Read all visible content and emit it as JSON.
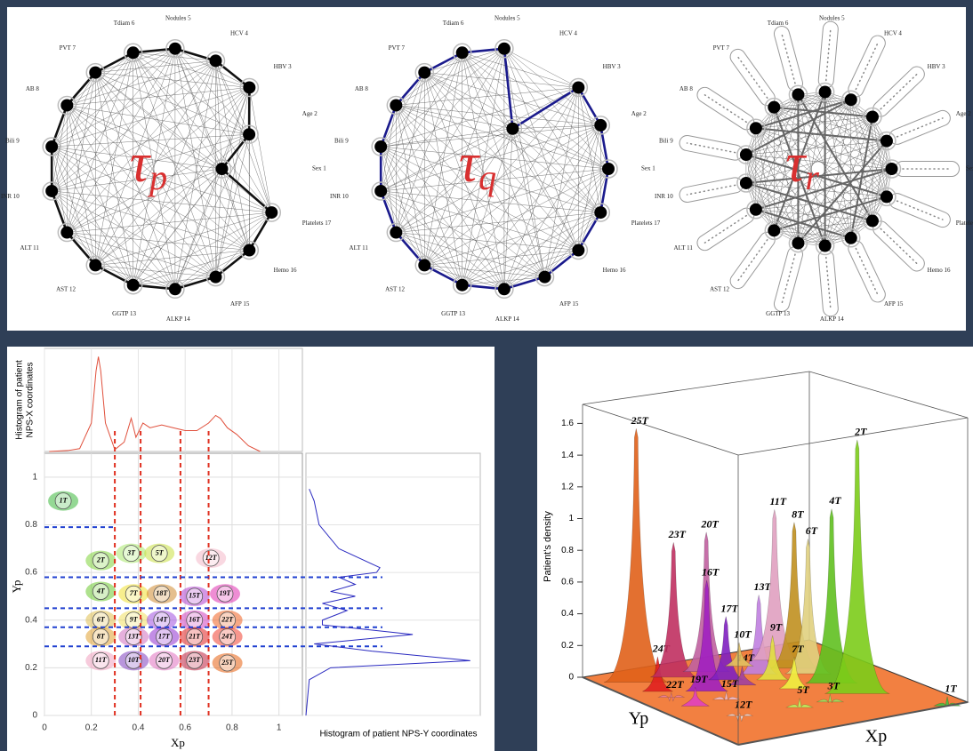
{
  "node_labels": [
    "Sex 1",
    "Age 2",
    "HBV 3",
    "HCV 4",
    "Nodules 5",
    "Tdiam 6",
    "PVT 7",
    "AB 8",
    "Bili 9",
    "INR 10",
    "ALT 11",
    "AST 12",
    "GGTP 13",
    "ALKP 14",
    "AFP 15",
    "Hemo 16",
    "Platelets 17"
  ],
  "networks": [
    {
      "symbol": "τ",
      "subscript": "p"
    },
    {
      "symbol": "τ",
      "subscript": "q"
    },
    {
      "symbol": "τ",
      "subscript": "r"
    }
  ],
  "chart_data": [
    {
      "type": "scatter",
      "x_label": "Xp",
      "y_label": "Yp",
      "xlim": [
        0,
        1.1
      ],
      "ylim": [
        0,
        1.1
      ],
      "xticks": [
        0,
        0.2,
        0.4,
        0.6,
        0.8,
        1
      ],
      "yticks": [
        0,
        0.2,
        0.4,
        0.6,
        0.8,
        1
      ],
      "grid": true,
      "labels": [
        "1T",
        "2T",
        "3T",
        "5T",
        "12T",
        "4T",
        "7T",
        "18T",
        "15T",
        "19T",
        "6T",
        "9T",
        "14T",
        "16T",
        "22T",
        "8T",
        "13T",
        "17T",
        "21T",
        "24T",
        "11T",
        "10T",
        "20T",
        "23T",
        "25T"
      ],
      "x": [
        0.08,
        0.24,
        0.37,
        0.49,
        0.71,
        0.24,
        0.38,
        0.5,
        0.64,
        0.77,
        0.24,
        0.38,
        0.5,
        0.64,
        0.78,
        0.24,
        0.38,
        0.51,
        0.64,
        0.78,
        0.24,
        0.38,
        0.51,
        0.64,
        0.78
      ],
      "values": [
        0.9,
        0.65,
        0.68,
        0.68,
        0.66,
        0.52,
        0.51,
        0.51,
        0.5,
        0.51,
        0.4,
        0.4,
        0.4,
        0.4,
        0.4,
        0.33,
        0.33,
        0.33,
        0.33,
        0.33,
        0.23,
        0.23,
        0.23,
        0.23,
        0.22
      ],
      "colors": [
        "#3cb83c",
        "#7fd43a",
        "#a8e86a",
        "#c8e040",
        "#f4b8c8",
        "#6cc830",
        "#f0e030",
        "#d08a30",
        "#b040d0",
        "#e030b0",
        "#e0c050",
        "#f0e060",
        "#a050e0",
        "#d040c0",
        "#f06020",
        "#e0a030",
        "#d070c0",
        "#9030d0",
        "#e02020",
        "#f04030",
        "#f0a0c0",
        "#8040c0",
        "#e070c0",
        "#c02040",
        "#e86010"
      ],
      "thresholds_x": [
        0.3,
        0.41,
        0.58,
        0.7
      ],
      "thresholds_y": [
        0.79,
        0.58,
        0.45,
        0.37,
        0.29
      ]
    },
    {
      "type": "line",
      "y_label": [
        "Histogram of patient",
        "NPS-X coordinates"
      ],
      "color": "#e0503c",
      "xlim": [
        0,
        1.1
      ],
      "ylim": [
        0,
        1.05
      ],
      "x": [
        0.02,
        0.1,
        0.15,
        0.2,
        0.22,
        0.23,
        0.24,
        0.26,
        0.3,
        0.34,
        0.37,
        0.39,
        0.42,
        0.45,
        0.5,
        0.55,
        0.6,
        0.65,
        0.7,
        0.73,
        0.75,
        0.78,
        0.82,
        0.87,
        0.92
      ],
      "values": [
        0,
        0.01,
        0.03,
        0.3,
        0.85,
        1,
        0.85,
        0.3,
        0.02,
        0.1,
        0.35,
        0.15,
        0.3,
        0.25,
        0.28,
        0.25,
        0.22,
        0.22,
        0.3,
        0.38,
        0.35,
        0.25,
        0.18,
        0.06,
        0
      ]
    },
    {
      "type": "line",
      "orientation": "horizontal",
      "x_label": "Histogram of patient NPS-Y coordinates",
      "color": "#2a2ac0",
      "xlim": [
        0,
        1.1
      ],
      "ylim": [
        0,
        1.05
      ],
      "x": [
        0,
        0.15,
        0.2,
        0.23,
        0.27,
        0.3,
        0.34,
        0.38,
        0.4,
        0.44,
        0.47,
        0.5,
        0.52,
        0.55,
        0.58,
        0.6,
        0.62,
        0.7,
        0.8,
        0.9,
        0.95
      ],
      "values": [
        0,
        0.02,
        0.15,
        1,
        0.4,
        0.05,
        0.65,
        0.1,
        0.1,
        0.25,
        0.1,
        0.3,
        0.15,
        0.3,
        0.2,
        0.43,
        0.45,
        0.2,
        0.08,
        0.05,
        0.02
      ]
    },
    {
      "type": "surface3d",
      "y_label": "Patient's density",
      "x_label": "Xp",
      "z_label": "Yp",
      "ylim": [
        0,
        1.72
      ],
      "yticks": [
        0,
        0.2,
        0.4,
        0.6,
        0.8,
        1,
        1.2,
        1.4,
        1.6
      ],
      "labels": [
        "25T",
        "24T",
        "23T",
        "20T",
        "16T",
        "17T",
        "13T",
        "11T",
        "14T",
        "19T",
        "22T",
        "15T",
        "8T",
        "6T",
        "10T",
        "9T",
        "7T",
        "4T",
        "2T",
        "3T",
        "5T",
        "12T",
        "1T"
      ],
      "x": [
        0.78,
        0.78,
        0.64,
        0.51,
        0.64,
        0.51,
        0.38,
        0.24,
        0.5,
        0.77,
        0.78,
        0.64,
        0.24,
        0.24,
        0.38,
        0.38,
        0.38,
        0.24,
        0.24,
        0.37,
        0.49,
        0.71,
        0.08
      ],
      "z": [
        0.22,
        0.33,
        0.23,
        0.23,
        0.4,
        0.33,
        0.33,
        0.23,
        0.4,
        0.51,
        0.4,
        0.5,
        0.33,
        0.4,
        0.23,
        0.4,
        0.51,
        0.52,
        0.65,
        0.68,
        0.68,
        0.66,
        0.9
      ],
      "values": [
        1.6,
        0.22,
        0.85,
        0.88,
        0.7,
        0.4,
        0.5,
        0.95,
        0.12,
        0.12,
        0.03,
        0.05,
        0.92,
        0.85,
        0.15,
        0.28,
        0.2,
        1.1,
        1.6,
        0.05,
        0.06,
        0.02,
        0.06
      ],
      "colors": [
        "#e0601a",
        "#e02020",
        "#c03060",
        "#c060a0",
        "#a020c0",
        "#8020c0",
        "#c080e0",
        "#e0a0c0",
        "#a040a0",
        "#e040c0",
        "#f080a0",
        "#f0c0d0",
        "#c09020",
        "#e0d080",
        "#e0c060",
        "#e0e040",
        "#f0f040",
        "#60c020",
        "#7ccc1a",
        "#a0e060",
        "#c0f060",
        "#f0e0e0",
        "#40c040"
      ]
    }
  ]
}
